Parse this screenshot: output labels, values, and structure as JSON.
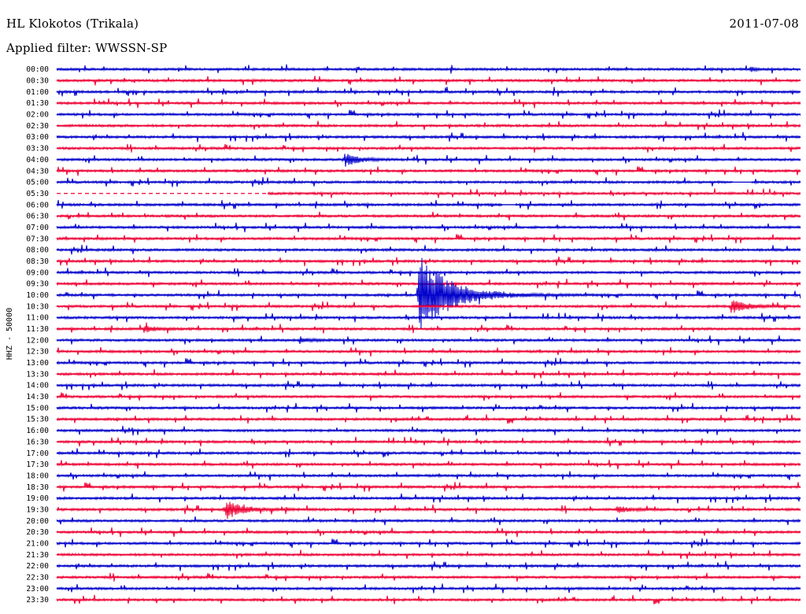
{
  "header": {
    "station": "HL Klokotos (Trikala)",
    "filter": "Applied filter: WWSSN-SP",
    "date": "2011-07-08"
  },
  "chart_data": {
    "type": "line",
    "title": "HL Klokotos (Trikala)",
    "subtitle": "Applied filter: WWSSN-SP",
    "date": "2011-07-08",
    "ylabel": "HHZ - 50000",
    "rows": [
      "00:00",
      "00:30",
      "01:00",
      "01:30",
      "02:00",
      "02:30",
      "03:00",
      "03:30",
      "04:00",
      "04:30",
      "05:00",
      "05:30",
      "06:00",
      "06:30",
      "07:00",
      "07:30",
      "08:00",
      "08:30",
      "09:00",
      "09:30",
      "10:00",
      "10:30",
      "11:00",
      "11:30",
      "12:00",
      "12:30",
      "13:00",
      "13:30",
      "14:00",
      "14:30",
      "15:00",
      "15:30",
      "16:00",
      "16:30",
      "17:00",
      "17:30",
      "18:00",
      "18:30",
      "19:00",
      "19:30",
      "20:00",
      "20:30",
      "21:00",
      "21:30",
      "22:00",
      "22:30",
      "23:00",
      "23:30"
    ],
    "trace_minutes": 30,
    "series_colors": [
      "#0000cc",
      "#ee0033"
    ],
    "events": [
      {
        "row": "04:00",
        "minute": 11.6,
        "amplitude": 0.7,
        "duration": 0.9
      },
      {
        "row": "10:00",
        "minute": 14.6,
        "amplitude": 3.6,
        "duration": 2.2
      },
      {
        "row": "10:30",
        "minute": 27.2,
        "amplitude": 0.6,
        "duration": 1.2
      },
      {
        "row": "11:30",
        "minute": 3.5,
        "amplitude": 0.3,
        "duration": 0.8
      },
      {
        "row": "19:30",
        "minute": 6.8,
        "amplitude": 0.9,
        "duration": 1.2
      },
      {
        "row": "19:30",
        "minute": 22.6,
        "amplitude": 0.3,
        "duration": 0.8
      },
      {
        "row": "12:00",
        "minute": 9.8,
        "amplitude": 0.3,
        "duration": 0.6
      },
      {
        "row": "00:00",
        "minute": 28.0,
        "amplitude": 0.2,
        "duration": 0.3
      }
    ],
    "gaps": [
      {
        "row": "05:30",
        "from": 0.0,
        "to": 8.5
      },
      {
        "row": "05:00",
        "from": 27.3,
        "to": 28.0
      },
      {
        "row": "06:00",
        "from": 18.0,
        "to": 18.5
      }
    ]
  }
}
